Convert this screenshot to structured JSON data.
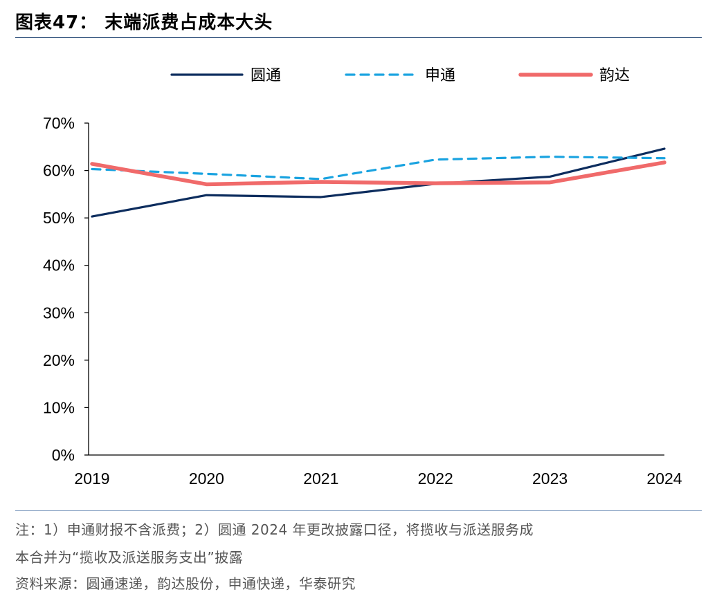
{
  "title": "图表47： 末端派费占成本大头",
  "notes": {
    "line1": "注：1）申通财报不含派费；2）圆通 2024 年更改披露口径，将揽收与派送服务成",
    "line2": "本合并为“揽收及派送服务支出”披露",
    "source": "资料来源：圆通速递，韵达股份，申通快递，华泰研究"
  },
  "chart_data": {
    "type": "line",
    "categories": [
      "2019",
      "2020",
      "2021",
      "2022",
      "2023",
      "2024"
    ],
    "ylim": [
      0,
      70
    ],
    "yticks": [
      "0%",
      "10%",
      "20%",
      "30%",
      "40%",
      "50%",
      "60%",
      "70%"
    ],
    "grid": false,
    "legend_position": "top",
    "series": [
      {
        "name": "圆通",
        "color": "#0d2d5e",
        "dash": "solid",
        "values": [
          50.3,
          54.8,
          54.4,
          57.2,
          58.7,
          64.6
        ]
      },
      {
        "name": "申通",
        "color": "#1aa3e0",
        "dash": "dashed",
        "values": [
          60.3,
          59.3,
          58.2,
          62.3,
          62.9,
          62.6
        ]
      },
      {
        "name": "韵达",
        "color": "#f06a6a",
        "dash": "solid",
        "values": [
          61.4,
          57.1,
          57.6,
          57.3,
          57.5,
          61.7
        ]
      }
    ]
  }
}
